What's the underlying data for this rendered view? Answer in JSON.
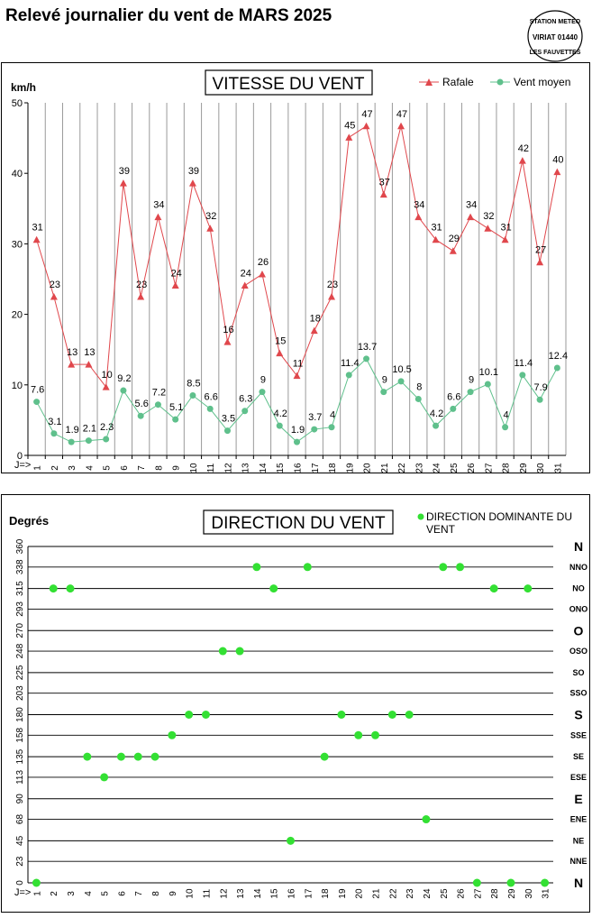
{
  "page": {
    "title": "Relevé journalier du vent de MARS 2025"
  },
  "stamp": {
    "line1": "STATION METEO",
    "line2": "VIRIAT 01440",
    "line3": "LES FAUVETTES"
  },
  "chart_data": [
    {
      "type": "line",
      "title": "VITESSE DU VENT",
      "ylabel": "km/h",
      "xlabel": "J=>",
      "ylim": [
        0,
        50
      ],
      "yticks": [
        0,
        10,
        20,
        30,
        40,
        50
      ],
      "categories": [
        "1",
        "2",
        "3",
        "4",
        "5",
        "6",
        "7",
        "8",
        "9",
        "10",
        "11",
        "12",
        "13",
        "14",
        "15",
        "16",
        "17",
        "18",
        "19",
        "20",
        "21",
        "22",
        "23",
        "24",
        "25",
        "26",
        "27",
        "28",
        "29",
        "30",
        "31"
      ],
      "grid": "vertical",
      "legend": "top-right",
      "series": [
        {
          "name": "Rafale",
          "color": "#e0474c",
          "marker": "triangle",
          "values": [
            30.6,
            22.5,
            12.9,
            12.9,
            9.7,
            38.6,
            22.5,
            33.8,
            24.1,
            38.6,
            32.2,
            16.1,
            24.1,
            25.7,
            14.5,
            11.3,
            17.7,
            22.5,
            45.1,
            46.7,
            37.0,
            46.7,
            33.8,
            30.6,
            29.0,
            33.8,
            32.2,
            30.6,
            41.8,
            27.4,
            40.2
          ],
          "labels": [
            "31",
            "23",
            "13",
            "13",
            "10",
            "39",
            "23",
            "34",
            "24",
            "39",
            "32",
            "16",
            "24",
            "26",
            "15",
            "11",
            "18",
            "23",
            "45",
            "47",
            "37",
            "47",
            "34",
            "31",
            "29",
            "34",
            "32",
            "31",
            "42",
            "27",
            "40"
          ]
        },
        {
          "name": "Vent moyen",
          "color": "#5fc08c",
          "marker": "circle",
          "values": [
            7.6,
            3.1,
            1.9,
            2.1,
            2.3,
            9.2,
            5.6,
            7.2,
            5.1,
            8.5,
            6.6,
            3.5,
            6.3,
            9,
            4.2,
            1.9,
            3.7,
            4,
            11.4,
            13.7,
            9,
            10.5,
            8,
            4.2,
            6.6,
            9,
            10.1,
            4,
            11.4,
            7.9,
            12.4
          ],
          "labels": [
            "7.6",
            "3.1",
            "1.9",
            "2.1",
            "2.3",
            "9.2",
            "5.6",
            "7.2",
            "5.1",
            "8.5",
            "6.6",
            "3.5",
            "6.3",
            "9",
            "4.2",
            "1.9",
            "3.7",
            "4",
            "11.4",
            "13.7",
            "9",
            "10.5",
            "8",
            "4.2",
            "6.6",
            "9",
            "10.1",
            "4",
            "11.4",
            "7.9",
            "12.4"
          ]
        }
      ]
    },
    {
      "type": "scatter",
      "title": "DIRECTION DU VENT",
      "ylabel": "Degrés",
      "xlabel": "J=>",
      "ylim": [
        0,
        360
      ],
      "grid": "horizontal",
      "legend": "top-right",
      "yticks": [
        0,
        23,
        45,
        68,
        90,
        113,
        135,
        158,
        180,
        203,
        225,
        248,
        270,
        293,
        315,
        338,
        360
      ],
      "directions": [
        "N",
        "NNE",
        "NE",
        "ENE",
        "E",
        "ESE",
        "SE",
        "SSE",
        "S",
        "SSO",
        "SO",
        "OSO",
        "O",
        "ONO",
        "NO",
        "NNO",
        "N"
      ],
      "categories": [
        "1",
        "2",
        "3",
        "4",
        "5",
        "6",
        "7",
        "8",
        "9",
        "10",
        "11",
        "12",
        "13",
        "14",
        "15",
        "16",
        "17",
        "18",
        "19",
        "20",
        "21",
        "22",
        "23",
        "24",
        "25",
        "26",
        "27",
        "28",
        "29",
        "30",
        "31"
      ],
      "series": [
        {
          "name": "DIRECTION DOMINANTE DU VENT",
          "color": "#33e033",
          "values": [
            0,
            315,
            315,
            135,
            113,
            135,
            135,
            135,
            158,
            180,
            180,
            248,
            248,
            338,
            315,
            45,
            338,
            135,
            180,
            158,
            158,
            180,
            180,
            68,
            338,
            338,
            0,
            315,
            0,
            315,
            0
          ]
        }
      ]
    }
  ]
}
